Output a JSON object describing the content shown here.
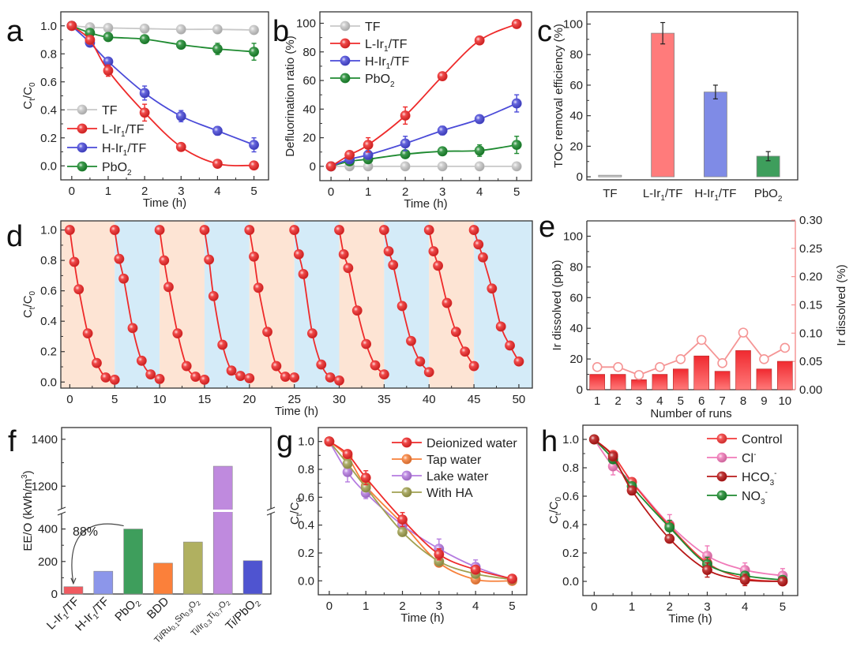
{
  "chart_data": [
    {
      "panel": "a",
      "type": "line",
      "xlabel": "Time (h)",
      "ylabel": "Ct/C0",
      "xlim": [
        -0.3,
        5.4
      ],
      "ylim": [
        -0.1,
        1.1
      ],
      "xticks": [
        0,
        1,
        2,
        3,
        4,
        5
      ],
      "yticks": [
        0.0,
        0.2,
        0.4,
        0.6,
        0.8,
        1.0
      ],
      "x": [
        0,
        0.5,
        1,
        2,
        3,
        4,
        5
      ],
      "legend": "bottom-left",
      "series": [
        {
          "name": "TF",
          "color": "#c8c8c8",
          "values": [
            1.0,
            0.99,
            0.985,
            0.98,
            0.975,
            0.975,
            0.97
          ],
          "err": [
            0,
            0,
            0,
            0,
            0,
            0,
            0
          ]
        },
        {
          "name": "L-Ir1/TF",
          "color": "#ee2a2a",
          "values": [
            1.0,
            0.9,
            0.68,
            0.38,
            0.135,
            0.015,
            0.003
          ],
          "err": [
            0,
            0,
            0.04,
            0.06,
            0.02,
            0.02,
            0.01
          ]
        },
        {
          "name": "H-Ir1/TF",
          "color": "#4a4ad8",
          "values": [
            1.0,
            0.88,
            0.745,
            0.52,
            0.355,
            0.25,
            0.15
          ],
          "err": [
            0,
            0.01,
            0.02,
            0.05,
            0.04,
            0.03,
            0.05
          ]
        },
        {
          "name": "PbO2",
          "color": "#1e8a30",
          "values": [
            1.0,
            0.95,
            0.92,
            0.905,
            0.865,
            0.835,
            0.815
          ],
          "err": [
            0,
            0.01,
            0.02,
            0.02,
            0.02,
            0.04,
            0.06
          ]
        }
      ]
    },
    {
      "panel": "b",
      "type": "line",
      "xlabel": "Time (h)",
      "ylabel": "Defluorination ratio (%)",
      "xlim": [
        -0.3,
        5.4
      ],
      "ylim": [
        -10,
        108
      ],
      "xticks": [
        0,
        1,
        2,
        3,
        4,
        5
      ],
      "yticks": [
        0,
        20,
        40,
        60,
        80,
        100
      ],
      "x": [
        0,
        0.5,
        1,
        2,
        3,
        4,
        5
      ],
      "legend": "top-left",
      "series": [
        {
          "name": "TF",
          "color": "#c8c8c8",
          "values": [
            0,
            0,
            0,
            0,
            0,
            0,
            0
          ],
          "err": [
            0,
            0,
            0,
            0,
            0,
            0,
            0
          ]
        },
        {
          "name": "L-Ir1/TF",
          "color": "#ee2a2a",
          "values": [
            0,
            8,
            15,
            35.5,
            63,
            88,
            99.5
          ],
          "err": [
            0,
            2,
            5,
            6,
            2,
            1,
            1
          ]
        },
        {
          "name": "H-Ir1/TF",
          "color": "#4a4ad8",
          "values": [
            0,
            5,
            8,
            16,
            25,
            33,
            44
          ],
          "err": [
            0,
            2,
            3,
            5,
            3,
            1,
            6
          ]
        },
        {
          "name": "PbO2",
          "color": "#1e8a30",
          "values": [
            0,
            3.5,
            5,
            8.5,
            10.5,
            11,
            15
          ],
          "err": [
            0,
            1,
            2,
            2,
            2,
            4,
            6
          ]
        }
      ]
    },
    {
      "panel": "c",
      "type": "bar",
      "ylabel": "TOC removal efficiency (%)",
      "ylim": [
        -2,
        108
      ],
      "yticks": [
        0,
        20,
        40,
        60,
        80,
        100
      ],
      "categories": [
        "TF",
        "L-Ir1/TF",
        "H-Ir1/TF",
        "PbO2"
      ],
      "values": [
        1,
        94,
        55.5,
        13.5
      ],
      "err": [
        0,
        7,
        4.5,
        3
      ],
      "colors": [
        "#d4d4d4",
        "#ff7b7b",
        "#7f8be6",
        "#3e9e5c"
      ]
    },
    {
      "panel": "d",
      "type": "line",
      "xlabel": "Time (h)",
      "ylabel": "Ct/C0",
      "xlim": [
        -1,
        51.5
      ],
      "ylim": [
        -0.04,
        1.06
      ],
      "xticks": [
        0,
        5,
        10,
        15,
        20,
        25,
        30,
        35,
        40,
        45,
        50
      ],
      "yticks": [
        0.0,
        0.2,
        0.4,
        0.6,
        0.8,
        1.0
      ],
      "band_colors": [
        "#fde4d4",
        "#d4ebf8"
      ],
      "cycle_x_offsets": [
        0,
        0.5,
        1,
        2,
        3,
        4,
        5
      ],
      "cycles": [
        [
          1.0,
          0.79,
          0.61,
          0.32,
          0.125,
          0.03,
          0.015
        ],
        [
          1.0,
          0.81,
          0.68,
          0.355,
          0.14,
          0.05,
          0.02
        ],
        [
          1.0,
          0.8,
          0.625,
          0.32,
          0.105,
          0.035,
          0.015
        ],
        [
          1.0,
          0.805,
          0.565,
          0.245,
          0.075,
          0.04,
          0.025
        ],
        [
          1.0,
          0.825,
          0.62,
          0.33,
          0.105,
          0.035,
          0.03
        ],
        [
          1.0,
          0.84,
          0.71,
          0.32,
          0.115,
          0.03,
          0.01
        ],
        [
          1.0,
          0.84,
          0.75,
          0.47,
          0.25,
          0.11,
          0.05
        ],
        [
          1.0,
          0.86,
          0.77,
          0.5,
          0.27,
          0.135,
          0.065
        ],
        [
          1.0,
          0.86,
          0.765,
          0.52,
          0.33,
          0.2,
          0.105
        ],
        [
          1.0,
          0.905,
          0.82,
          0.615,
          0.365,
          0.24,
          0.135
        ]
      ],
      "color": "#ee2a2a"
    },
    {
      "panel": "e",
      "type": "bar",
      "xlabel": "Number of runs",
      "ylabel": "Ir dissolved (ppb)",
      "ylabel_right": "Ir dissolved (%)",
      "ylim": [
        0,
        110
      ],
      "ylim_right": [
        0,
        0.3
      ],
      "yticks": [
        0,
        20,
        40,
        60,
        80,
        100
      ],
      "yticks_right": [
        "0.00",
        "0.05",
        "0.10",
        "0.15",
        "0.20",
        "0.25",
        "0.30"
      ],
      "categories": [
        "1",
        "2",
        "3",
        "4",
        "5",
        "6",
        "7",
        "8",
        "9",
        "10"
      ],
      "values": [
        10,
        10,
        6.5,
        10,
        13.5,
        22,
        12,
        25.5,
        13.5,
        18.5
      ],
      "line_values": [
        0.04,
        0.04,
        0.026,
        0.04,
        0.054,
        0.088,
        0.047,
        0.101,
        0.054,
        0.074
      ],
      "bar_color": "#f0363a",
      "line_color": "#f59595"
    },
    {
      "panel": "f",
      "type": "bar",
      "ylabel": "EE/O (kWh/m3)",
      "broken_axis": {
        "lower": [
          0,
          500
        ],
        "upper": [
          1100,
          1450
        ]
      },
      "yticks": [
        0,
        200,
        400,
        1200,
        1400
      ],
      "categories": [
        "L-Ir1/TF",
        "H-Ir1/TF",
        "PbO2",
        "BDD",
        "Ti/Ru0.1Sn0.9O2",
        "Ti/Ir0.3Ti0.7O2",
        "Ti/PbO2"
      ],
      "values": [
        45,
        140,
        400,
        190,
        320,
        1285,
        205
      ],
      "colors": [
        "#f05a60",
        "#8c96ea",
        "#3e9e5c",
        "#fb803a",
        "#b0b060",
        "#bf8ade",
        "#4f54d0"
      ],
      "annotation": "88%"
    },
    {
      "panel": "g",
      "type": "line",
      "xlabel": "Time (h)",
      "ylabel": "Ct/C0",
      "xlim": [
        -0.3,
        5.4
      ],
      "ylim": [
        -0.1,
        1.1
      ],
      "xticks": [
        0,
        1,
        2,
        3,
        4,
        5
      ],
      "yticks": [
        0.0,
        0.2,
        0.4,
        0.6,
        0.8,
        1.0
      ],
      "x": [
        0,
        0.5,
        1,
        2,
        3,
        4,
        5
      ],
      "legend": "top-right",
      "series": [
        {
          "name": "Deionized water",
          "color": "#ee2a2a",
          "values": [
            1.0,
            0.91,
            0.74,
            0.44,
            0.19,
            0.08,
            0.015
          ],
          "err": [
            0,
            0.01,
            0.05,
            0.05,
            0.04,
            0.02,
            0.01
          ]
        },
        {
          "name": "Tap water",
          "color": "#f7803a",
          "values": [
            1.0,
            0.89,
            0.68,
            0.41,
            0.13,
            0.01,
            0.0
          ],
          "err": [
            0,
            0.01,
            0.02,
            0.02,
            0.02,
            0.01,
            0.01
          ]
        },
        {
          "name": "Lake water",
          "color": "#b57ce0",
          "values": [
            1.0,
            0.78,
            0.63,
            0.4,
            0.23,
            0.1,
            0.01
          ],
          "err": [
            0,
            0.07,
            0.04,
            0.02,
            0.07,
            0.05,
            0.01
          ]
        },
        {
          "name": "With HA",
          "color": "#a0a050",
          "values": [
            1.0,
            0.84,
            0.67,
            0.35,
            0.14,
            0.05,
            0.01
          ],
          "err": [
            0,
            0.02,
            0.02,
            0.03,
            0.02,
            0.02,
            0.01
          ]
        }
      ]
    },
    {
      "panel": "h",
      "type": "line",
      "xlabel": "Time (h)",
      "ylabel": "Ct/C0",
      "xlim": [
        -0.3,
        5.4
      ],
      "ylim": [
        -0.1,
        1.1
      ],
      "xticks": [
        0,
        1,
        2,
        3,
        4,
        5
      ],
      "yticks": [
        0.0,
        0.2,
        0.4,
        0.6,
        0.8,
        1.0
      ],
      "x": [
        0,
        0.5,
        1,
        2,
        3,
        4,
        5
      ],
      "legend": "top-right",
      "series": [
        {
          "name": "Control",
          "color": "#f23a3a",
          "values": [
            1.0,
            0.89,
            0.7,
            0.39,
            0.13,
            0.02,
            0.0
          ],
          "err": [
            0,
            0.01,
            0.02,
            0.03,
            0.03,
            0.02,
            0.01
          ]
        },
        {
          "name": "Cl-",
          "color": "#f07ab8",
          "values": [
            1.0,
            0.81,
            0.7,
            0.4,
            0.18,
            0.08,
            0.04
          ],
          "err": [
            0,
            0.06,
            0.02,
            0.07,
            0.07,
            0.05,
            0.05
          ]
        },
        {
          "name": "HCO3-",
          "color": "#b81818",
          "values": [
            1.0,
            0.88,
            0.64,
            0.3,
            0.08,
            0.01,
            0.0
          ],
          "err": [
            0,
            0.01,
            0.03,
            0.01,
            0.05,
            0.04,
            0.01
          ]
        },
        {
          "name": "NO3-",
          "color": "#1e8a30",
          "values": [
            1.0,
            0.86,
            0.67,
            0.38,
            0.12,
            0.04,
            0.01
          ],
          "err": [
            0,
            0.01,
            0.02,
            0.05,
            0.05,
            0.02,
            0.01
          ]
        }
      ]
    }
  ],
  "labels": {
    "panel_a": "a",
    "panel_b": "b",
    "panel_c": "c",
    "panel_d": "d",
    "panel_e": "e",
    "panel_f": "f",
    "panel_g": "g",
    "panel_h": "h",
    "time_h": "Time (h)",
    "ct_c0": "C",
    "defluor": "Defluorination ratio (%)",
    "toc": "TOC removal efficiency (%)",
    "ir_ppb": "Ir dissolved (ppb)",
    "ir_pct": "Ir dissolved (%)",
    "runs": "Number of runs",
    "eeo": "EE/O (kWh/m",
    "pct88": "88%"
  }
}
